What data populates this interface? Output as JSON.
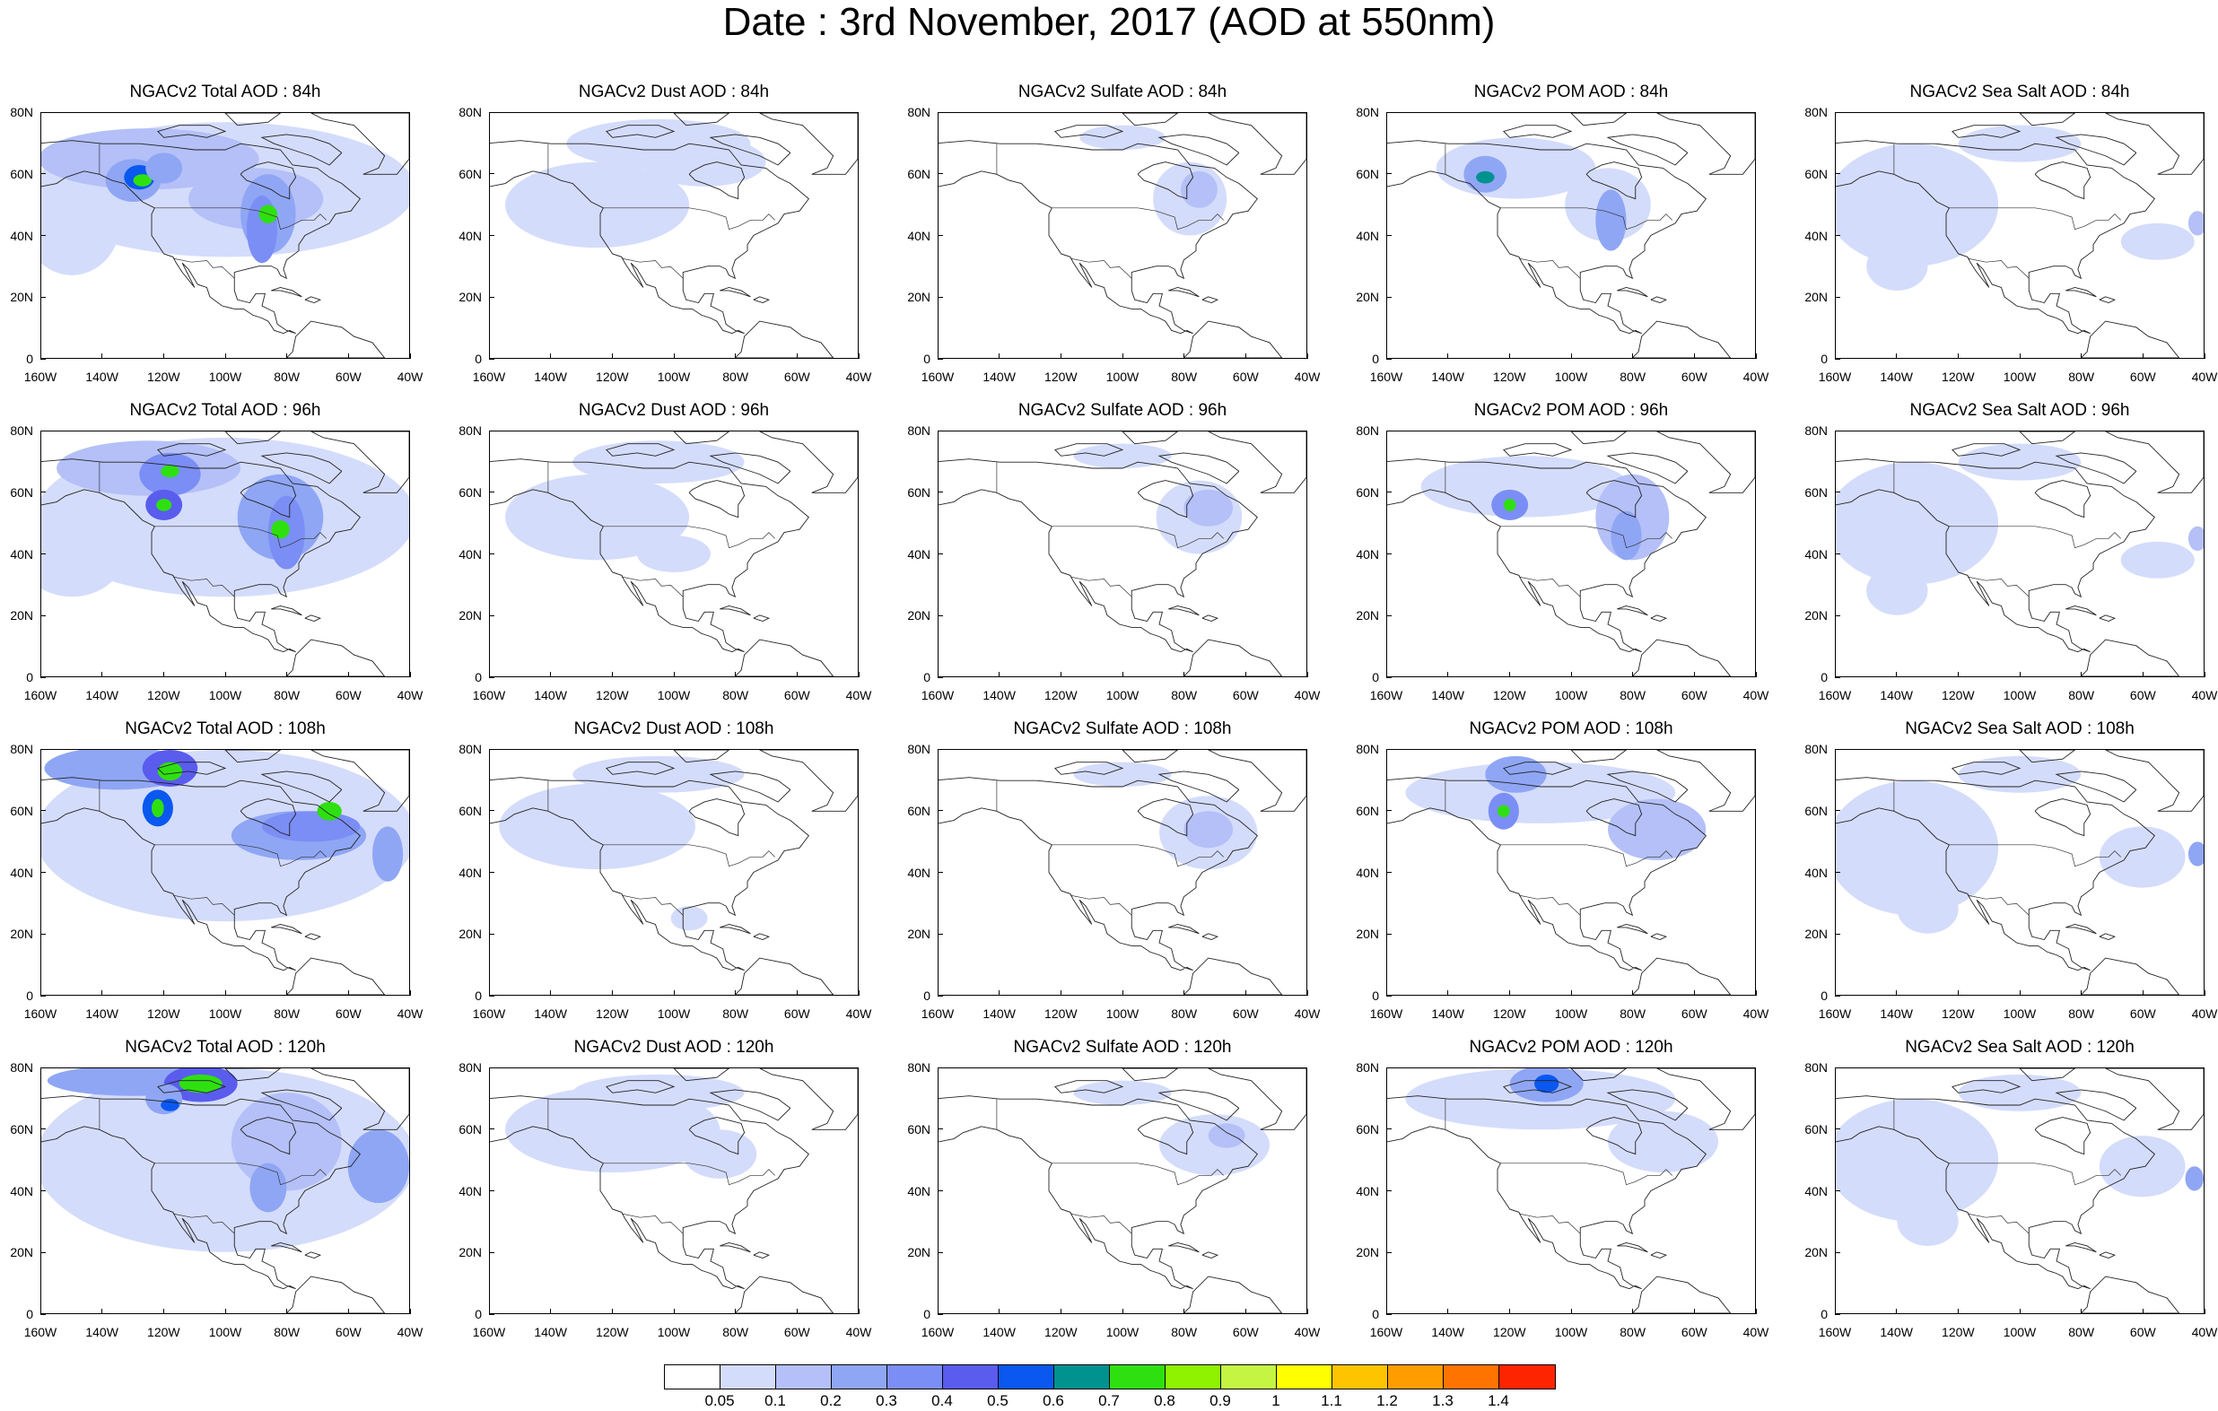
{
  "title": "Date : 3rd November, 2017 (AOD at 550nm)",
  "y_tick_labels": [
    "0",
    "20N",
    "40N",
    "60N",
    "80N"
  ],
  "x_tick_labels": [
    "160W",
    "140W",
    "120W",
    "100W",
    "80W",
    "60W",
    "40W"
  ],
  "panels": [
    [
      {
        "title": "NGACv2 Total AOD : 84h",
        "species": "total"
      },
      {
        "title": "NGACv2 Dust AOD : 84h",
        "species": "dust"
      },
      {
        "title": "NGACv2 Sulfate AOD : 84h",
        "species": "sulfate"
      },
      {
        "title": "NGACv2 POM AOD : 84h",
        "species": "pom"
      },
      {
        "title": "NGACv2 Sea Salt AOD : 84h",
        "species": "seasalt"
      }
    ],
    [
      {
        "title": "NGACv2 Total AOD : 96h",
        "species": "total"
      },
      {
        "title": "NGACv2 Dust AOD : 96h",
        "species": "dust"
      },
      {
        "title": "NGACv2 Sulfate AOD : 96h",
        "species": "sulfate"
      },
      {
        "title": "NGACv2 POM AOD : 96h",
        "species": "pom"
      },
      {
        "title": "NGACv2 Sea Salt AOD : 96h",
        "species": "seasalt"
      }
    ],
    [
      {
        "title": "NGACv2 Total AOD : 108h",
        "species": "total"
      },
      {
        "title": "NGACv2 Dust AOD : 108h",
        "species": "dust"
      },
      {
        "title": "NGACv2 Sulfate AOD : 108h",
        "species": "sulfate"
      },
      {
        "title": "NGACv2 POM AOD : 108h",
        "species": "pom"
      },
      {
        "title": "NGACv2 Sea Salt AOD : 108h",
        "species": "seasalt"
      }
    ],
    [
      {
        "title": "NGACv2 Total AOD : 120h",
        "species": "total"
      },
      {
        "title": "NGACv2 Dust AOD : 120h",
        "species": "dust"
      },
      {
        "title": "NGACv2 Sulfate AOD : 120h",
        "species": "sulfate"
      },
      {
        "title": "NGACv2 POM AOD : 120h",
        "species": "pom"
      },
      {
        "title": "NGACv2 Sea Salt  AOD : 120h",
        "species": "seasalt"
      }
    ]
  ],
  "colorbar": {
    "colors": [
      "#ffffff",
      "#d4dcfb",
      "#b4c0f7",
      "#8fa6f5",
      "#7b8ef5",
      "#5a5cee",
      "#0a58f0",
      "#00928f",
      "#2fe010",
      "#8ef200",
      "#c4f542",
      "#ffff00",
      "#ffc400",
      "#ff9c00",
      "#ff7400",
      "#ff2400"
    ],
    "labels": [
      "0.05",
      "0.1",
      "0.2",
      "0.3",
      "0.4",
      "0.5",
      "0.6",
      "0.7",
      "0.8",
      "0.9",
      "1",
      "1.1",
      "1.2",
      "1.3",
      "1.4"
    ]
  },
  "map": {
    "lon_range": [
      -160,
      -40
    ],
    "lat_range": [
      0,
      80
    ]
  }
}
